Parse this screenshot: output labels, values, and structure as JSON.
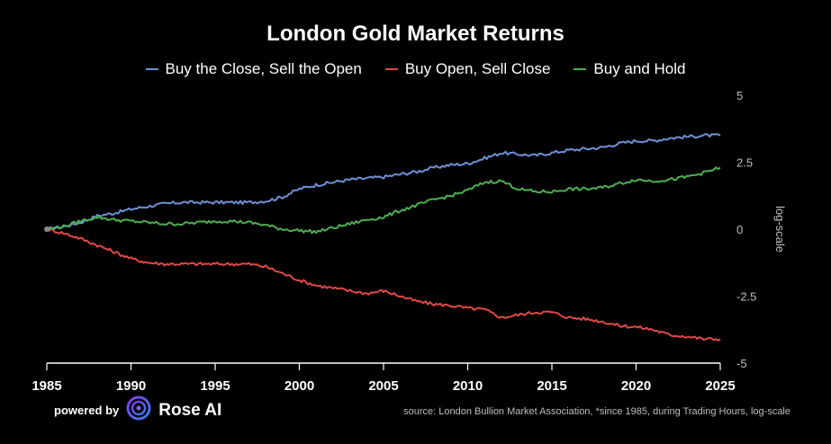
{
  "chart_data": {
    "type": "line",
    "title": "London Gold Market Returns",
    "xlabel": "",
    "ylabel": "log-scale",
    "xlim": [
      1985,
      2025
    ],
    "ylim": [
      -5,
      5
    ],
    "x_ticks": [
      "1985",
      "1990",
      "1995",
      "2000",
      "2005",
      "2010",
      "2015",
      "2020",
      "2025"
    ],
    "y_ticks": [
      "5",
      "2.5",
      "0",
      "-2.5",
      "-5"
    ],
    "legend_position": "top-center",
    "series": [
      {
        "name": "Buy the Close, Sell the Open",
        "color": "#6f8fd6",
        "x": [
          1985,
          1986,
          1987,
          1988,
          1989,
          1990,
          1991,
          1992,
          1993,
          1994,
          1995,
          1996,
          1997,
          1998,
          1999,
          2000,
          2001,
          2002,
          2003,
          2004,
          2005,
          2006,
          2007,
          2008,
          2009,
          2010,
          2011,
          2012,
          2013,
          2014,
          2015,
          2016,
          2017,
          2018,
          2019,
          2020,
          2021,
          2022,
          2023,
          2024,
          2025
        ],
        "values": [
          0,
          0.1,
          0.25,
          0.5,
          0.6,
          0.75,
          0.85,
          0.95,
          1.0,
          1.0,
          1.0,
          1.0,
          1.0,
          1.05,
          1.2,
          1.5,
          1.65,
          1.75,
          1.85,
          1.9,
          1.95,
          2.05,
          2.15,
          2.3,
          2.4,
          2.45,
          2.65,
          2.85,
          2.8,
          2.75,
          2.85,
          2.95,
          3.0,
          3.05,
          3.2,
          3.3,
          3.3,
          3.4,
          3.45,
          3.5,
          3.5
        ]
      },
      {
        "name": "Buy Open, Sell Close",
        "color": "#e04848",
        "x": [
          1985,
          1986,
          1987,
          1988,
          1989,
          1990,
          1991,
          1992,
          1993,
          1994,
          1995,
          1996,
          1997,
          1998,
          1999,
          2000,
          2001,
          2002,
          2003,
          2004,
          2005,
          2006,
          2007,
          2008,
          2009,
          2010,
          2011,
          2012,
          2013,
          2014,
          2015,
          2016,
          2017,
          2018,
          2019,
          2020,
          2021,
          2022,
          2023,
          2024,
          2025
        ],
        "values": [
          0,
          -0.15,
          -0.35,
          -0.6,
          -0.85,
          -1.1,
          -1.25,
          -1.3,
          -1.3,
          -1.3,
          -1.3,
          -1.3,
          -1.3,
          -1.4,
          -1.65,
          -1.9,
          -2.1,
          -2.2,
          -2.3,
          -2.4,
          -2.3,
          -2.5,
          -2.7,
          -2.8,
          -2.85,
          -2.95,
          -3.0,
          -3.3,
          -3.2,
          -3.1,
          -3.1,
          -3.3,
          -3.35,
          -3.45,
          -3.6,
          -3.65,
          -3.75,
          -3.95,
          -4.0,
          -4.1,
          -4.1
        ]
      },
      {
        "name": "Buy and Hold",
        "color": "#4caf50",
        "x": [
          1985,
          1986,
          1987,
          1988,
          1989,
          1990,
          1991,
          1992,
          1993,
          1994,
          1995,
          1996,
          1997,
          1998,
          1999,
          2000,
          2001,
          2002,
          2003,
          2004,
          2005,
          2006,
          2007,
          2008,
          2009,
          2010,
          2011,
          2012,
          2013,
          2014,
          2015,
          2016,
          2017,
          2018,
          2019,
          2020,
          2021,
          2022,
          2023,
          2024,
          2025
        ],
        "values": [
          0,
          0.1,
          0.3,
          0.45,
          0.35,
          0.3,
          0.25,
          0.2,
          0.2,
          0.25,
          0.3,
          0.3,
          0.25,
          0.15,
          0.0,
          -0.05,
          -0.1,
          0.05,
          0.2,
          0.35,
          0.45,
          0.7,
          0.9,
          1.1,
          1.25,
          1.45,
          1.75,
          1.8,
          1.5,
          1.4,
          1.4,
          1.5,
          1.5,
          1.55,
          1.7,
          1.85,
          1.8,
          1.85,
          1.95,
          2.1,
          2.3
        ]
      }
    ],
    "source": "source: London Bullion Market Association, *since 1985, during Trading Hours, log-scale"
  },
  "footer": {
    "powered_by": "powered by",
    "brand": "Rose AI",
    "logo_icon": "rose-ai-logo-icon"
  }
}
